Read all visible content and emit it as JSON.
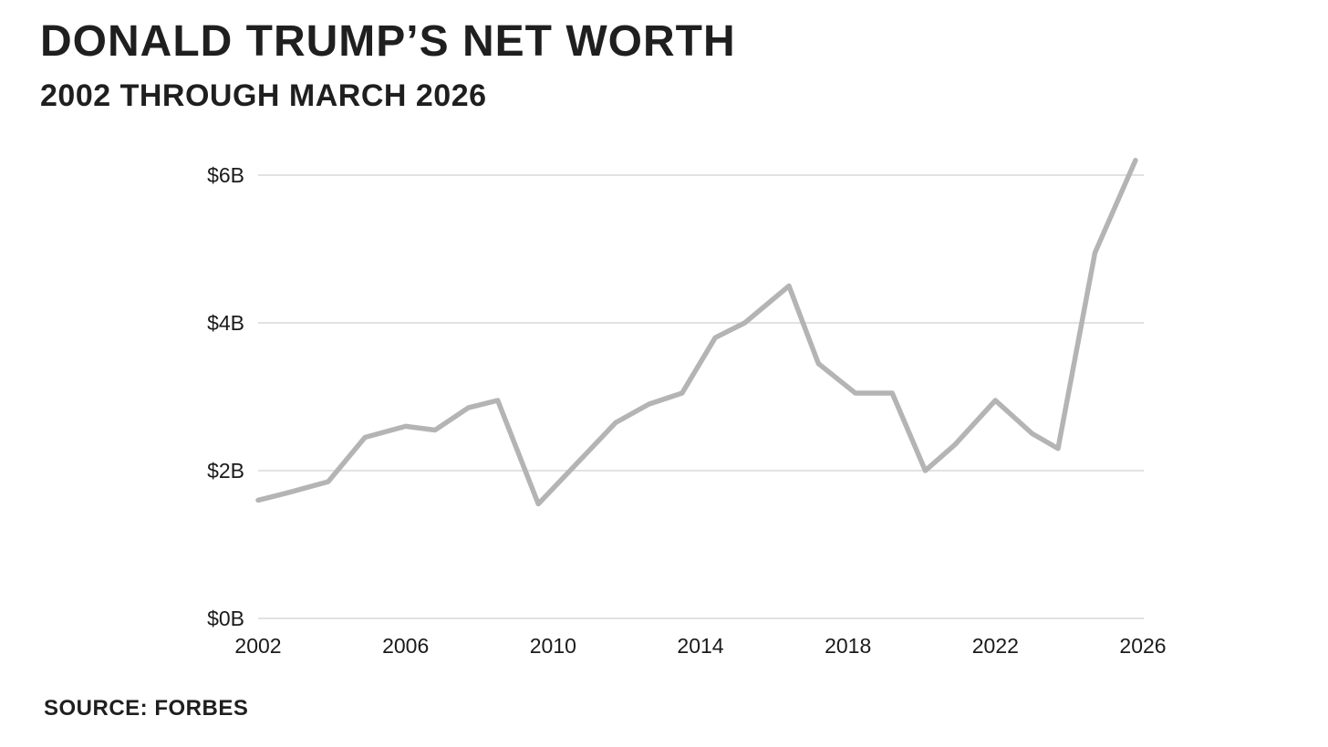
{
  "page": {
    "title": "DONALD TRUMP’S NET WORTH",
    "subtitle": "2002 THROUGH MARCH 2026",
    "source": "SOURCE: FORBES"
  },
  "colors": {
    "background": "#ffffff",
    "text": "#1f1f1f",
    "tick_text": "#1a1a1a",
    "gridline": "#d8d8d8",
    "line": "#b4b4b4"
  },
  "chart_data": {
    "type": "line",
    "title": "DONALD TRUMP’S NET WORTH",
    "subtitle": "2002 THROUGH MARCH 2026",
    "source": "SOURCE: FORBES",
    "xlabel": "",
    "ylabel": "",
    "xlim": [
      2002,
      2026
    ],
    "ylim": [
      0,
      6.5
    ],
    "grid": "horizontal-only",
    "legend_position": "none",
    "x_ticks": [
      {
        "label": "2002",
        "value": 2002
      },
      {
        "label": "2006",
        "value": 2006
      },
      {
        "label": "2010",
        "value": 2010
      },
      {
        "label": "2014",
        "value": 2014
      },
      {
        "label": "2018",
        "value": 2018
      },
      {
        "label": "2022",
        "value": 2022
      },
      {
        "label": "2026",
        "value": 2026
      }
    ],
    "y_ticks": [
      {
        "label": "$0B",
        "value": 0
      },
      {
        "label": "$2B",
        "value": 2
      },
      {
        "label": "$4B",
        "value": 4
      },
      {
        "label": "$6B",
        "value": 6
      }
    ],
    "series": [
      {
        "name": "net-worth-billions-usd",
        "points": [
          {
            "x": 2002.0,
            "y": 1.6
          },
          {
            "x": 2002.8,
            "y": 1.7
          },
          {
            "x": 2003.9,
            "y": 1.85
          },
          {
            "x": 2004.9,
            "y": 2.45
          },
          {
            "x": 2006.0,
            "y": 2.6
          },
          {
            "x": 2006.8,
            "y": 2.55
          },
          {
            "x": 2007.7,
            "y": 2.85
          },
          {
            "x": 2008.5,
            "y": 2.95
          },
          {
            "x": 2009.6,
            "y": 1.55
          },
          {
            "x": 2011.7,
            "y": 2.65
          },
          {
            "x": 2012.6,
            "y": 2.9
          },
          {
            "x": 2013.5,
            "y": 3.05
          },
          {
            "x": 2014.4,
            "y": 3.8
          },
          {
            "x": 2015.2,
            "y": 4.0
          },
          {
            "x": 2016.4,
            "y": 4.5
          },
          {
            "x": 2017.2,
            "y": 3.45
          },
          {
            "x": 2018.2,
            "y": 3.05
          },
          {
            "x": 2019.2,
            "y": 3.05
          },
          {
            "x": 2020.1,
            "y": 2.0
          },
          {
            "x": 2020.9,
            "y": 2.35
          },
          {
            "x": 2022.0,
            "y": 2.95
          },
          {
            "x": 2023.0,
            "y": 2.5
          },
          {
            "x": 2023.7,
            "y": 2.3
          },
          {
            "x": 2024.7,
            "y": 4.95
          },
          {
            "x": 2025.8,
            "y": 6.2
          }
        ]
      }
    ]
  }
}
